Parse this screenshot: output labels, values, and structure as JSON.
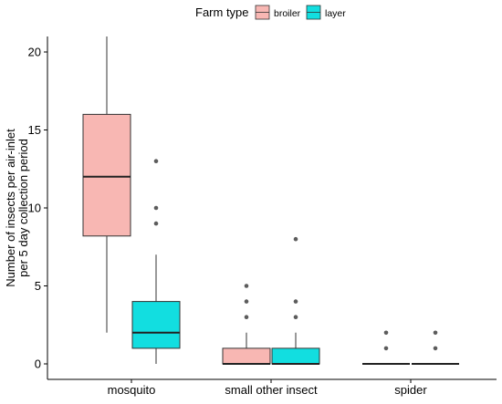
{
  "chart_data": {
    "type": "boxplot",
    "legend": {
      "title": "Farm type",
      "position": "top",
      "entries": [
        {
          "name": "broiler",
          "color": "#F8B7B3"
        },
        {
          "name": "layer",
          "color": "#12DEE0"
        }
      ]
    },
    "ylabel": "Number of insects per air-inlet\nper 5 day collection period",
    "xlabel": "",
    "ylim": [
      -0.9,
      21
    ],
    "yticks": [
      0,
      5,
      10,
      15,
      20
    ],
    "categories": [
      "mosquito",
      "small other insect",
      "spider"
    ],
    "series": [
      {
        "name": "broiler",
        "color": "#F8B7B3",
        "boxes": [
          {
            "category": "mosquito",
            "min": 2,
            "q1": 8.2,
            "median": 12,
            "q3": 16,
            "max": 21,
            "outliers": []
          },
          {
            "category": "small other insect",
            "min": 0,
            "q1": 0,
            "median": 0,
            "q3": 1,
            "max": 2,
            "outliers": [
              3,
              4,
              5
            ]
          },
          {
            "category": "spider",
            "min": 0,
            "q1": 0,
            "median": 0,
            "q3": 0,
            "max": 0,
            "outliers": [
              1,
              2
            ]
          }
        ]
      },
      {
        "name": "layer",
        "color": "#12DEE0",
        "boxes": [
          {
            "category": "mosquito",
            "min": 0,
            "q1": 1,
            "median": 2,
            "q3": 4,
            "max": 7,
            "outliers": [
              9,
              10,
              13
            ]
          },
          {
            "category": "small other insect",
            "min": 0,
            "q1": 0,
            "median": 0,
            "q3": 1,
            "max": 2,
            "outliers": [
              3,
              4,
              8
            ]
          },
          {
            "category": "spider",
            "min": 0,
            "q1": 0,
            "median": 0,
            "q3": 0,
            "max": 0,
            "outliers": [
              1,
              2
            ]
          }
        ]
      }
    ]
  }
}
